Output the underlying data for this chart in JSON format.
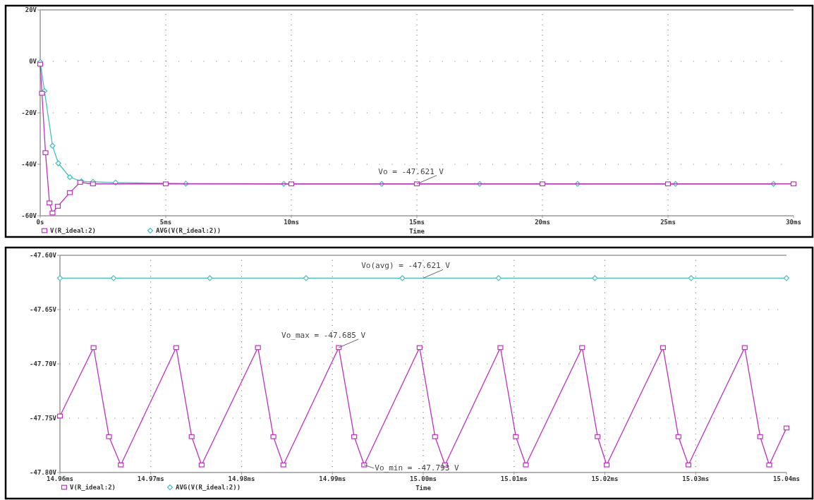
{
  "chart_data": [
    {
      "type": "line",
      "xlabel": "Time",
      "xlim": [
        0,
        30
      ],
      "ylim": [
        -60,
        20
      ],
      "xticks": [
        {
          "value": 0,
          "label": "0s"
        },
        {
          "value": 5,
          "label": "5ms"
        },
        {
          "value": 10,
          "label": "10ms"
        },
        {
          "value": 15,
          "label": "15ms"
        },
        {
          "value": 20,
          "label": "20ms"
        },
        {
          "value": 25,
          "label": "25ms"
        },
        {
          "value": 30,
          "label": "30ms"
        }
      ],
      "yticks": [
        {
          "value": 20,
          "label": "20V"
        },
        {
          "value": 0,
          "label": "0V"
        },
        {
          "value": -20,
          "label": "-20V"
        },
        {
          "value": -40,
          "label": "-40V"
        },
        {
          "value": -60,
          "label": "-60V"
        }
      ],
      "grid": true,
      "legend": "bottom left",
      "series": [
        {
          "name": "V(R_ideal:2)",
          "color": "#c030c0",
          "marker": "square",
          "x": [
            0,
            0.07,
            0.21,
            0.37,
            0.49,
            0.7,
            1.18,
            1.59,
            2.1,
            5,
            10,
            15,
            20,
            25,
            30
          ],
          "values": [
            -1.1,
            -12.4,
            -35.5,
            -55,
            -58.9,
            -56.3,
            -51,
            -47,
            -47.6,
            -47.6,
            -47.6,
            -47.6,
            -47.6,
            -47.6,
            -47.6
          ]
        },
        {
          "name": "AVG(V(R_ideal:2))",
          "color": "#40c0c0",
          "marker": "diamond",
          "x": [
            0,
            0.17,
            0.49,
            0.72,
            1.18,
            1.64,
            2.1,
            3,
            5.8,
            9.7,
            13.6,
            17.5,
            21.4,
            25.3,
            29.2
          ],
          "values": [
            -0.2,
            -11.5,
            -32.8,
            -39.6,
            -45,
            -46.6,
            -46.8,
            -47.1,
            -47.5,
            -47.6,
            -47.6,
            -47.6,
            -47.6,
            -47.6,
            -47.6
          ]
        }
      ],
      "annotations": [
        {
          "text": "Vo = -47.621 V",
          "x": 15,
          "y": -47.621
        }
      ]
    },
    {
      "type": "line",
      "xlabel": "Time",
      "xlim": [
        14.96,
        15.04
      ],
      "ylim": [
        -47.8,
        -47.6
      ],
      "xticks": [
        {
          "value": 14.96,
          "label": "14.96ms"
        },
        {
          "value": 14.97,
          "label": "14.97ms"
        },
        {
          "value": 14.98,
          "label": "14.98ms"
        },
        {
          "value": 14.99,
          "label": "14.99ms"
        },
        {
          "value": 15.0,
          "label": "15.00ms"
        },
        {
          "value": 15.01,
          "label": "15.01ms"
        },
        {
          "value": 15.02,
          "label": "15.02ms"
        },
        {
          "value": 15.03,
          "label": "15.03ms"
        },
        {
          "value": 15.04,
          "label": "15.04ms"
        }
      ],
      "yticks": [
        {
          "value": -47.6,
          "label": "-47.60V"
        },
        {
          "value": -47.65,
          "label": "-47.65V"
        },
        {
          "value": -47.7,
          "label": "-47.70V"
        },
        {
          "value": -47.75,
          "label": "-47.75V"
        },
        {
          "value": -47.8,
          "label": "-47.80V"
        }
      ],
      "grid": true,
      "legend": "bottom left",
      "series": [
        {
          "name": "V(R_ideal:2)",
          "color": "#c030c0",
          "marker": "square",
          "x": [
            14.96,
            14.9637,
            14.9654,
            14.9667,
            14.9728,
            14.9745,
            14.9756,
            14.9818,
            14.9835,
            14.9846,
            14.9907,
            14.9924,
            14.9935,
            14.9996,
            15.0013,
            15.0024,
            15.0085,
            15.0102,
            15.0113,
            15.0175,
            15.0192,
            15.0202,
            15.0264,
            15.0281,
            15.0292,
            15.0354,
            15.0371,
            15.0381,
            15.04
          ],
          "values": [
            -47.748,
            -47.685,
            -47.767,
            -47.793,
            -47.685,
            -47.767,
            -47.793,
            -47.685,
            -47.767,
            -47.793,
            -47.685,
            -47.767,
            -47.793,
            -47.685,
            -47.767,
            -47.793,
            -47.685,
            -47.767,
            -47.793,
            -47.685,
            -47.767,
            -47.793,
            -47.685,
            -47.767,
            -47.793,
            -47.685,
            -47.767,
            -47.793,
            -47.759
          ]
        },
        {
          "name": "AVG(V(R_ideal:2))",
          "color": "#40c0c0",
          "marker": "diamond",
          "x": [
            14.96,
            14.9659,
            14.9765,
            14.9871,
            14.9977,
            15.0083,
            15.0189,
            15.0295,
            15.04
          ],
          "values": [
            -47.621,
            -47.621,
            -47.621,
            -47.621,
            -47.621,
            -47.621,
            -47.621,
            -47.621,
            -47.621
          ]
        }
      ],
      "annotations": [
        {
          "text": "Vo(avg) = -47.621 V",
          "x": 15.0,
          "y": -47.621
        },
        {
          "text": "Vo_max = -47.685 V",
          "x": 14.9907,
          "y": -47.685
        },
        {
          "text": "Vo_min = -47.793 V",
          "x": 14.9935,
          "y": -47.793
        }
      ]
    }
  ]
}
